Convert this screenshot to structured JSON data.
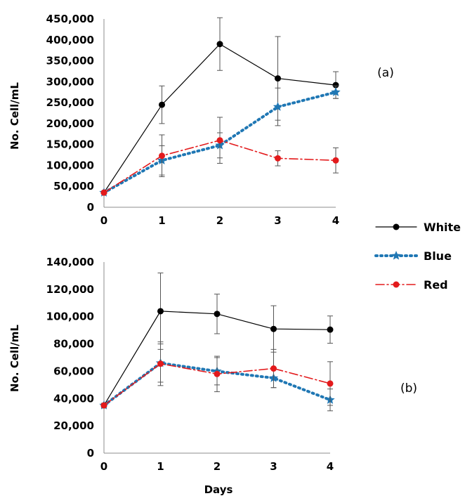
{
  "chart_data": [
    {
      "type": "line",
      "panel_label": "(a)",
      "ylabel": "No. Cell/mL",
      "xlabel": "",
      "x": [
        0,
        1,
        2,
        3,
        4
      ],
      "x_tick_labels": [
        "0",
        "1",
        "2",
        "3",
        "4"
      ],
      "ylim": [
        0,
        450000
      ],
      "y_ticks": [
        0,
        50000,
        100000,
        150000,
        200000,
        250000,
        300000,
        350000,
        400000,
        450000
      ],
      "y_tick_labels": [
        "0",
        "50,000",
        "100,000",
        "150,000",
        "200,000",
        "250,000",
        "300,000",
        "350,000",
        "400,000",
        "450,000"
      ],
      "grid": false,
      "series": [
        {
          "name": "White",
          "color": "#000000",
          "style": "solid",
          "marker": "circle",
          "values": [
            35000,
            245000,
            390000,
            308000,
            292000
          ],
          "errors": [
            3000,
            45000,
            63000,
            100000,
            32000
          ]
        },
        {
          "name": "Blue",
          "color": "#1f77b4",
          "style": "dotted",
          "marker": "star",
          "values": [
            35000,
            112000,
            148000,
            240000,
            275000
          ],
          "errors": [
            3000,
            35000,
            30000,
            45000,
            15000
          ]
        },
        {
          "name": "Red",
          "color": "#e31a1c",
          "style": "dashdot",
          "marker": "circle",
          "values": [
            35000,
            123000,
            160000,
            117000,
            112000
          ],
          "errors": [
            3000,
            50000,
            55000,
            18000,
            30000
          ]
        }
      ]
    },
    {
      "type": "line",
      "panel_label": "(b)",
      "ylabel": "No. Cell/mL",
      "xlabel": "Days",
      "x": [
        0,
        1,
        2,
        3,
        4
      ],
      "x_tick_labels": [
        "0",
        "1",
        "2",
        "3",
        "4"
      ],
      "ylim": [
        0,
        140000
      ],
      "y_ticks": [
        0,
        20000,
        40000,
        60000,
        80000,
        100000,
        120000,
        140000
      ],
      "y_tick_labels": [
        "0",
        "20,000",
        "40,000",
        "60,000",
        "80,000",
        "100,000",
        "120,000",
        "140,000"
      ],
      "grid": false,
      "series": [
        {
          "name": "White",
          "color": "#000000",
          "style": "solid",
          "marker": "circle",
          "values": [
            35000,
            104000,
            102000,
            91000,
            90500
          ],
          "errors": [
            1500,
            28000,
            14500,
            17000,
            10000
          ]
        },
        {
          "name": "Blue",
          "color": "#1f77b4",
          "style": "dotted",
          "marker": "star",
          "values": [
            35000,
            66000,
            60000,
            55000,
            39000
          ],
          "errors": [
            1500,
            14000,
            10000,
            7000,
            8000
          ]
        },
        {
          "name": "Red",
          "color": "#e31a1c",
          "style": "dashdot",
          "marker": "circle",
          "values": [
            35000,
            65500,
            58000,
            62000,
            51000
          ],
          "errors": [
            1500,
            16000,
            13000,
            14000,
            16000
          ]
        }
      ]
    }
  ],
  "legend": {
    "position": "right",
    "items": [
      {
        "label": "White",
        "color": "#000000",
        "style": "solid",
        "marker": "circle"
      },
      {
        "label": "Blue",
        "color": "#1f77b4",
        "style": "dotted",
        "marker": "star"
      },
      {
        "label": "Red",
        "color": "#e31a1c",
        "style": "dashdot",
        "marker": "circle"
      }
    ]
  }
}
